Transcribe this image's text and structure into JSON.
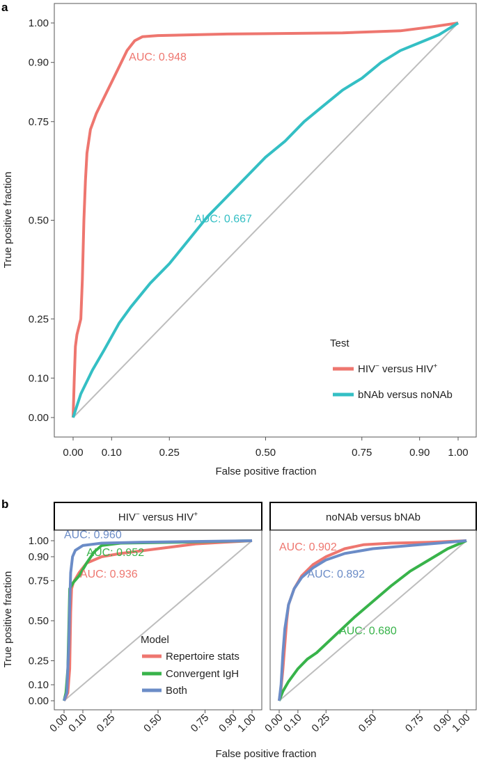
{
  "panel_a": {
    "letter": "a",
    "chart_data": {
      "type": "line",
      "xlabel": "False positive fraction",
      "ylabel": "True positive fraction",
      "xlim": [
        0,
        1
      ],
      "ylim": [
        0,
        1
      ],
      "x_ticks": [
        0,
        0.1,
        0.25,
        0.5,
        0.75,
        0.9,
        1
      ],
      "x_tick_labels": [
        "0.00",
        "0.10",
        "0.25",
        "0.50",
        "0.75",
        "0.90",
        "1.00"
      ],
      "y_ticks": [
        0,
        0.1,
        0.25,
        0.5,
        0.75,
        0.9,
        1
      ],
      "y_tick_labels": [
        "0.00",
        "0.10",
        "0.25",
        "0.50",
        "0.75",
        "0.90",
        "1.00"
      ],
      "legend": {
        "title": "Test",
        "position": "bottom-right"
      },
      "series": [
        {
          "name_main": "HIV",
          "name_sup": "−",
          "name_mid": " versus HIV",
          "name_sup2": "+",
          "color": "#ee766f",
          "auc_label": "AUC: 0.948",
          "points": [
            [
              0,
              0
            ],
            [
              0.003,
              0.1
            ],
            [
              0.006,
              0.18
            ],
            [
              0.01,
              0.21
            ],
            [
              0.02,
              0.25
            ],
            [
              0.024,
              0.35
            ],
            [
              0.028,
              0.5
            ],
            [
              0.032,
              0.6
            ],
            [
              0.036,
              0.67
            ],
            [
              0.045,
              0.73
            ],
            [
              0.06,
              0.77
            ],
            [
              0.08,
              0.81
            ],
            [
              0.1,
              0.85
            ],
            [
              0.12,
              0.89
            ],
            [
              0.14,
              0.93
            ],
            [
              0.16,
              0.955
            ],
            [
              0.18,
              0.965
            ],
            [
              0.22,
              0.968
            ],
            [
              0.4,
              0.972
            ],
            [
              0.7,
              0.975
            ],
            [
              0.85,
              0.98
            ],
            [
              0.93,
              0.99
            ],
            [
              1,
              1
            ]
          ]
        },
        {
          "name_main": "bNAb versus noNAb",
          "name_sup": "",
          "name_mid": "",
          "name_sup2": "",
          "color": "#34bfc4",
          "auc_label": "AUC: 0.667",
          "points": [
            [
              0,
              0
            ],
            [
              0.02,
              0.06
            ],
            [
              0.05,
              0.12
            ],
            [
              0.08,
              0.17
            ],
            [
              0.12,
              0.24
            ],
            [
              0.15,
              0.28
            ],
            [
              0.2,
              0.34
            ],
            [
              0.25,
              0.39
            ],
            [
              0.3,
              0.45
            ],
            [
              0.35,
              0.51
            ],
            [
              0.4,
              0.56
            ],
            [
              0.45,
              0.61
            ],
            [
              0.5,
              0.66
            ],
            [
              0.55,
              0.7
            ],
            [
              0.6,
              0.75
            ],
            [
              0.65,
              0.79
            ],
            [
              0.7,
              0.83
            ],
            [
              0.75,
              0.86
            ],
            [
              0.8,
              0.9
            ],
            [
              0.85,
              0.93
            ],
            [
              0.9,
              0.95
            ],
            [
              0.95,
              0.97
            ],
            [
              1,
              1
            ]
          ]
        }
      ],
      "diagonal": true
    }
  },
  "panel_b": {
    "letter": "b",
    "xlabel": "False positive fraction",
    "ylabel": "True positive fraction",
    "x_tick_labels": [
      "0.00",
      "0.10",
      "0.25",
      "0.50",
      "0.75",
      "0.90",
      "1.00"
    ],
    "y_tick_labels": [
      "0.00",
      "0.10",
      "0.25",
      "0.50",
      "0.75",
      "0.90",
      "1.00"
    ],
    "legend": {
      "title": "Model",
      "items": [
        "Repertoire stats",
        "Convergent IgH",
        "Both"
      ]
    },
    "chart_data": [
      {
        "type": "line",
        "strip_main": "HIV",
        "strip_sup": "−",
        "strip_mid": " versus HIV",
        "strip_sup2": "+",
        "xlim": [
          0,
          1
        ],
        "ylim": [
          0,
          1
        ],
        "series": [
          {
            "name": "Repertoire stats",
            "color": "#ee766f",
            "auc_label": "AUC: 0.936",
            "points": [
              [
                0,
                0
              ],
              [
                0.02,
                0.05
              ],
              [
                0.03,
                0.2
              ],
              [
                0.035,
                0.55
              ],
              [
                0.04,
                0.7
              ],
              [
                0.05,
                0.74
              ],
              [
                0.08,
                0.8
              ],
              [
                0.12,
                0.86
              ],
              [
                0.2,
                0.9
              ],
              [
                0.3,
                0.92
              ],
              [
                0.5,
                0.95
              ],
              [
                0.7,
                0.98
              ],
              [
                0.85,
                0.99
              ],
              [
                1,
                1
              ]
            ]
          },
          {
            "name": "Convergent IgH",
            "color": "#38b34a",
            "auc_label": "AUC: 0.952",
            "points": [
              [
                0,
                0
              ],
              [
                0.01,
                0.05
              ],
              [
                0.02,
                0.2
              ],
              [
                0.025,
                0.45
              ],
              [
                0.03,
                0.7
              ],
              [
                0.05,
                0.74
              ],
              [
                0.08,
                0.78
              ],
              [
                0.12,
                0.86
              ],
              [
                0.16,
                0.93
              ],
              [
                0.2,
                0.97
              ],
              [
                0.3,
                0.985
              ],
              [
                0.6,
                0.99
              ],
              [
                1,
                1
              ]
            ]
          },
          {
            "name": "Both",
            "color": "#6b8cc7",
            "auc_label": "AUC: 0.960",
            "points": [
              [
                0,
                0
              ],
              [
                0.015,
                0.05
              ],
              [
                0.025,
                0.35
              ],
              [
                0.03,
                0.6
              ],
              [
                0.035,
                0.8
              ],
              [
                0.045,
                0.9
              ],
              [
                0.06,
                0.94
              ],
              [
                0.1,
                0.97
              ],
              [
                0.2,
                0.985
              ],
              [
                0.4,
                0.99
              ],
              [
                0.7,
                0.995
              ],
              [
                1,
                1
              ]
            ]
          }
        ]
      },
      {
        "type": "line",
        "strip_main": "noNAb versus bNAb",
        "strip_sup": "",
        "strip_mid": "",
        "strip_sup2": "",
        "xlim": [
          0,
          1
        ],
        "ylim": [
          0,
          1
        ],
        "series": [
          {
            "name": "Repertoire stats",
            "color": "#ee766f",
            "auc_label": "AUC: 0.902",
            "points": [
              [
                0,
                0
              ],
              [
                0.01,
                0.08
              ],
              [
                0.02,
                0.2
              ],
              [
                0.03,
                0.35
              ],
              [
                0.04,
                0.5
              ],
              [
                0.05,
                0.6
              ],
              [
                0.08,
                0.7
              ],
              [
                0.12,
                0.78
              ],
              [
                0.18,
                0.85
              ],
              [
                0.25,
                0.9
              ],
              [
                0.35,
                0.95
              ],
              [
                0.45,
                0.975
              ],
              [
                0.6,
                0.985
              ],
              [
                0.8,
                0.99
              ],
              [
                1,
                1
              ]
            ]
          },
          {
            "name": "Convergent IgH",
            "color": "#38b34a",
            "auc_label": "AUC: 0.680",
            "points": [
              [
                0,
                0
              ],
              [
                0.02,
                0.06
              ],
              [
                0.05,
                0.12
              ],
              [
                0.1,
                0.2
              ],
              [
                0.15,
                0.26
              ],
              [
                0.2,
                0.3
              ],
              [
                0.3,
                0.41
              ],
              [
                0.4,
                0.52
              ],
              [
                0.5,
                0.62
              ],
              [
                0.6,
                0.72
              ],
              [
                0.7,
                0.81
              ],
              [
                0.8,
                0.88
              ],
              [
                0.9,
                0.95
              ],
              [
                1,
                1
              ]
            ]
          },
          {
            "name": "Both",
            "color": "#6b8cc7",
            "auc_label": "AUC: 0.892",
            "points": [
              [
                0,
                0
              ],
              [
                0.01,
                0.1
              ],
              [
                0.02,
                0.3
              ],
              [
                0.03,
                0.45
              ],
              [
                0.05,
                0.6
              ],
              [
                0.08,
                0.7
              ],
              [
                0.12,
                0.77
              ],
              [
                0.18,
                0.83
              ],
              [
                0.25,
                0.88
              ],
              [
                0.35,
                0.92
              ],
              [
                0.5,
                0.95
              ],
              [
                0.7,
                0.97
              ],
              [
                0.85,
                0.985
              ],
              [
                1,
                1
              ]
            ]
          }
        ]
      }
    ]
  }
}
